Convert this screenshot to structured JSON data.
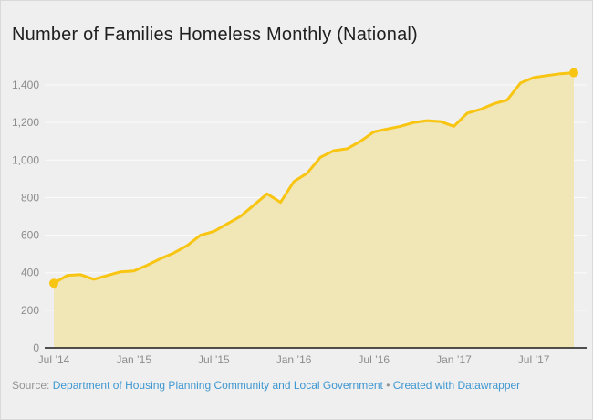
{
  "title": "Number of Families Homeless Monthly (National)",
  "source": {
    "prefix": "Source: ",
    "link_label": "Department of Housing Planning Community and Local Government",
    "separator": " • ",
    "credit_label": "Created with Datawrapper"
  },
  "colors": {
    "background": "#efefef",
    "line": "#f9c513",
    "fill": "#f0e6b6",
    "grid": "rgba(255,255,255,0.75)",
    "axis": "#1a1a1a",
    "tick_label": "#8c8c8c",
    "title_text": "#1f1f1f",
    "source_text": "#949494",
    "link": "#3e97d1"
  },
  "chart_data": {
    "type": "area",
    "title": "Number of Families Homeless Monthly (National)",
    "xlabel": "",
    "ylabel": "",
    "ylim": [
      0,
      1400
    ],
    "grid": true,
    "legend": false,
    "markers": "first-and-last-point",
    "x": [
      "Jul 2014",
      "Aug 2014",
      "Sep 2014",
      "Oct 2014",
      "Nov 2014",
      "Dec 2014",
      "Jan 2015",
      "Feb 2015",
      "Mar 2015",
      "Apr 2015",
      "May 2015",
      "Jun 2015",
      "Jul 2015",
      "Aug 2015",
      "Sep 2015",
      "Oct 2015",
      "Nov 2015",
      "Dec 2015",
      "Jan 2016",
      "Feb 2016",
      "Mar 2016",
      "Apr 2016",
      "May 2016",
      "Jun 2016",
      "Jul 2016",
      "Aug 2016",
      "Sep 2016",
      "Oct 2016",
      "Nov 2016",
      "Dec 2016",
      "Jan 2017",
      "Feb 2017",
      "Mar 2017",
      "Apr 2017",
      "May 2017",
      "Jun 2017",
      "Jul 2017",
      "Aug 2017",
      "Sep 2017",
      "Oct 2017"
    ],
    "values": [
      344,
      385,
      390,
      365,
      385,
      405,
      410,
      440,
      475,
      505,
      545,
      600,
      620,
      660,
      700,
      760,
      820,
      775,
      885,
      930,
      1015,
      1050,
      1060,
      1100,
      1150,
      1165,
      1180,
      1200,
      1210,
      1205,
      1180,
      1250,
      1270,
      1300,
      1320,
      1410,
      1440,
      1450,
      1460,
      1465
    ],
    "yticks": [
      0,
      200,
      400,
      600,
      800,
      1000,
      1200,
      1400
    ],
    "ytick_labels": [
      "0",
      "200",
      "400",
      "600",
      "800",
      "1,000",
      "1,200",
      "1,400"
    ],
    "xticks": [
      {
        "index": 0,
        "label": "Jul ’14"
      },
      {
        "index": 6,
        "label": "Jan ’15"
      },
      {
        "index": 12,
        "label": "Jul ’15"
      },
      {
        "index": 18,
        "label": "Jan ’16"
      },
      {
        "index": 24,
        "label": "Jul ’16"
      },
      {
        "index": 30,
        "label": "Jan ’17"
      },
      {
        "index": 36,
        "label": "Jul ’17"
      }
    ]
  }
}
